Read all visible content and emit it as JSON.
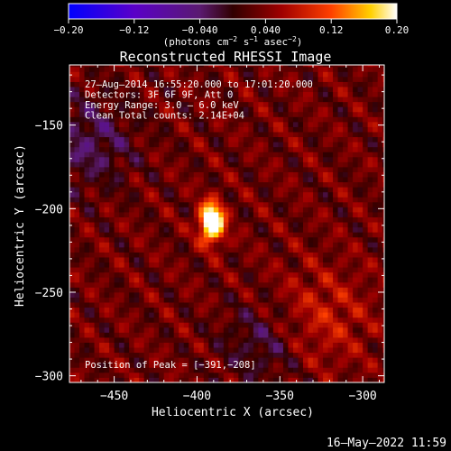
{
  "chart_data": {
    "type": "heatmap",
    "title": "Reconstructed RHESSI Image",
    "xlabel": "Heliocentric X (arcsec)",
    "ylabel": "Heliocentric Y (arcsec)",
    "xlim": [
      -477,
      -287
    ],
    "ylim": [
      -304,
      -114
    ],
    "x_ticks": [
      -450,
      -400,
      -350,
      -300
    ],
    "x_tick_labels": [
      "−450",
      "−400",
      "−350",
      "−300"
    ],
    "y_ticks": [
      -150,
      -200,
      -250,
      -300
    ],
    "y_tick_labels": [
      "−150",
      "−200",
      "−250",
      "−300"
    ],
    "colorbar": {
      "range": [
        -0.2,
        0.2
      ],
      "ticks": [
        -0.2,
        -0.12,
        -0.04,
        0.04,
        0.12,
        0.2
      ],
      "tick_labels": [
        "−0.20",
        "−0.12",
        "−0.040",
        "0.040",
        "0.12",
        "0.20"
      ],
      "unit_label": "(photons cm",
      "unit_parts": [
        "(photons cm",
        "−2",
        " s",
        "−1",
        " asec",
        "−2",
        ")"
      ]
    },
    "info_lines": [
      "27–Aug–2014 16:55:20.000 to 17:01:20.000",
      "Detectors: 3F 6F 9F, Att 0",
      "Energy Range: 3.0 – 6.0 keV",
      "Clean    Total counts: 2.14E+04"
    ],
    "peak_label": "Position of Peak = [−391,−208]",
    "peak": [
      -391,
      -208
    ],
    "timestamp": "16–May–2022 11:59"
  }
}
